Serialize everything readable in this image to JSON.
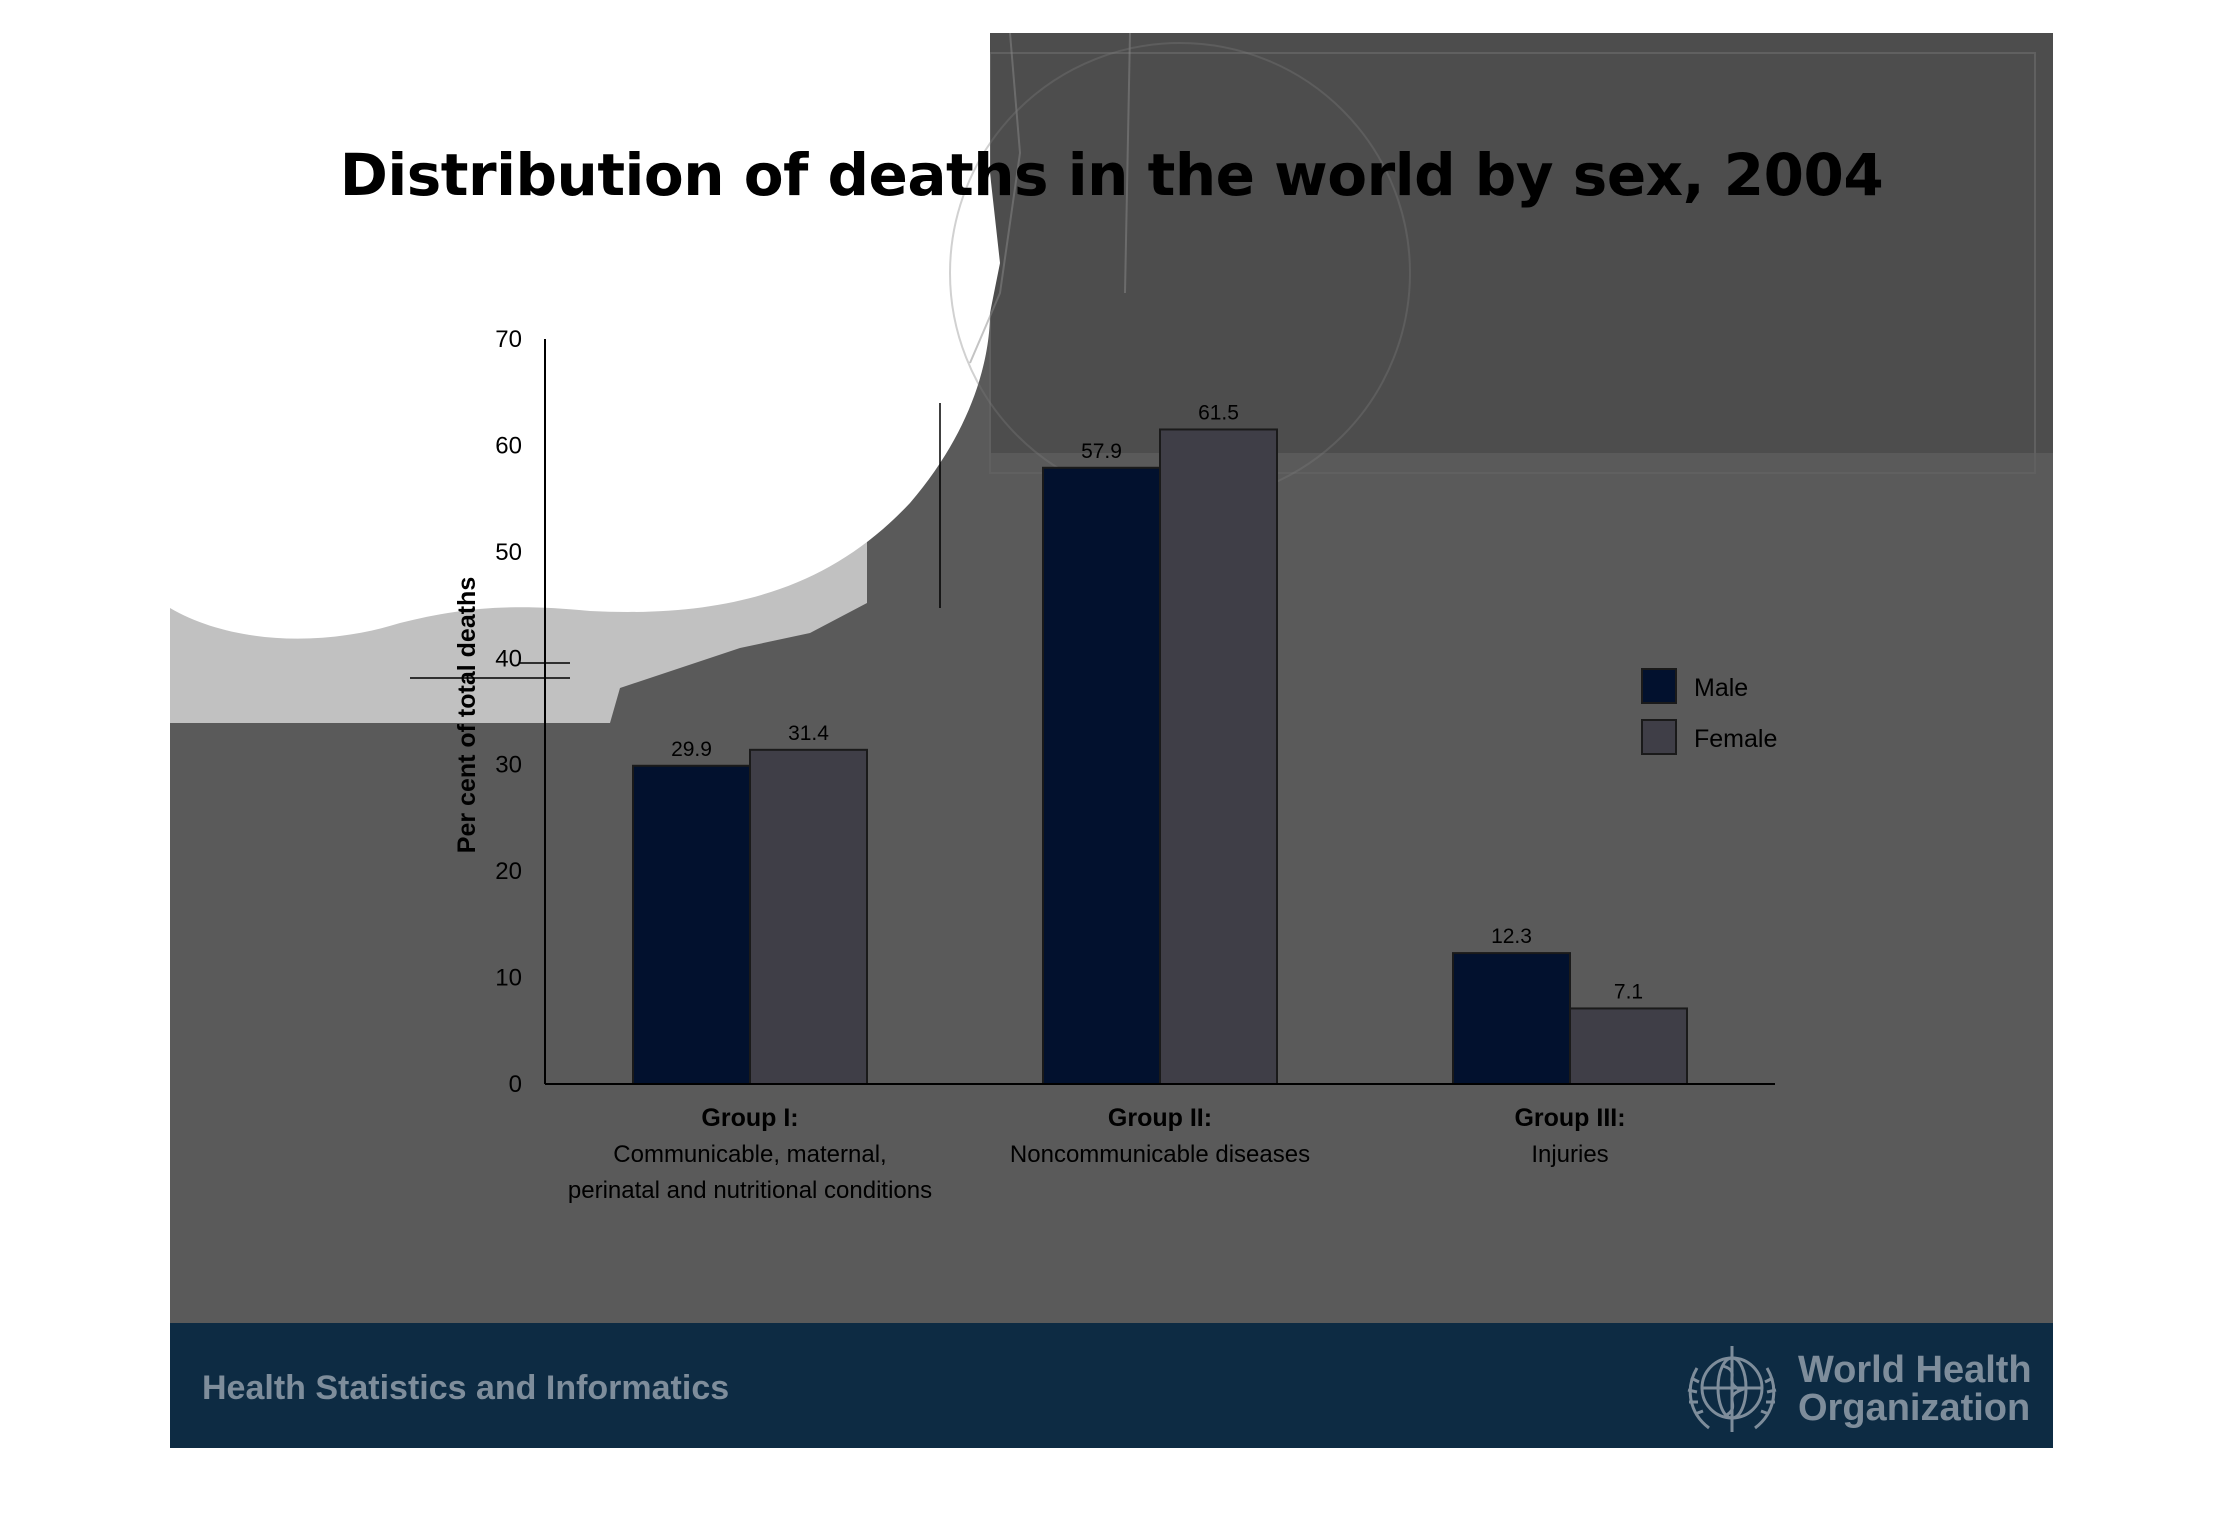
{
  "slide": {
    "title": "Distribution of deaths in the world by sex, 2004",
    "footer_text": "Health Statistics and Informatics",
    "org_name_line1": "World Health",
    "org_name_line2": "Organization"
  },
  "colors": {
    "male": "#02112e",
    "female": "#3f3e47",
    "slide_bg": "#5a5a5a",
    "footer_bg": "#0d2b43",
    "footer_text": "#7e8d9b"
  },
  "chart_data": {
    "type": "bar",
    "ylabel": "Per cent of  total deaths",
    "ylim": [
      0,
      70
    ],
    "yticks": [
      0,
      10,
      20,
      30,
      40,
      50,
      60,
      70
    ],
    "categories": [
      {
        "title": "Group I:",
        "lines": [
          "Communicable, maternal,",
          "perinatal and nutritional conditions"
        ]
      },
      {
        "title": "Group II:",
        "lines": [
          "Noncommunicable diseases"
        ]
      },
      {
        "title": "Group III:",
        "lines": [
          "Injuries"
        ]
      }
    ],
    "series": [
      {
        "name": "Male",
        "values": [
          29.9,
          57.9,
          12.3
        ],
        "labels": [
          "29.9",
          "57.9",
          "12.3"
        ]
      },
      {
        "name": "Female",
        "values": [
          31.4,
          61.5,
          7.1
        ],
        "labels": [
          "31.4",
          "61.5",
          "7.1"
        ]
      }
    ],
    "legend": "right",
    "grid": false
  }
}
